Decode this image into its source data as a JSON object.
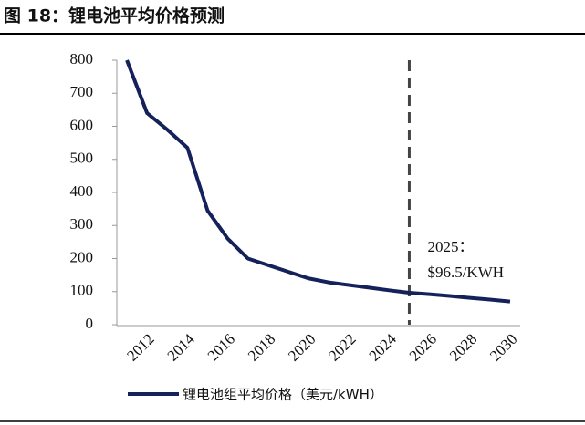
{
  "chart_data": {
    "type": "line",
    "title": "图 18：锂电池平均价格预测",
    "categories": [
      null,
      "2012",
      null,
      "2014",
      null,
      "2016",
      null,
      "2018",
      null,
      "2020",
      null,
      "2022",
      null,
      "2024",
      null,
      "2026",
      null,
      "2028",
      null,
      "2030"
    ],
    "series": [
      {
        "name": "锂电池组平均价格（美元/kWH）",
        "color": "#14215a",
        "values": [
          800,
          640,
          590,
          535,
          345,
          260,
          200,
          180,
          160,
          140,
          128,
          120,
          112,
          104,
          96.5,
          92,
          87,
          81,
          76,
          70
        ]
      }
    ],
    "ylim": [
      0,
      800
    ],
    "yticks": [
      0,
      100,
      200,
      300,
      400,
      500,
      600,
      700,
      800
    ],
    "annotation": [
      "2025：",
      "$96.5/KWH"
    ],
    "legend": "bottom"
  }
}
